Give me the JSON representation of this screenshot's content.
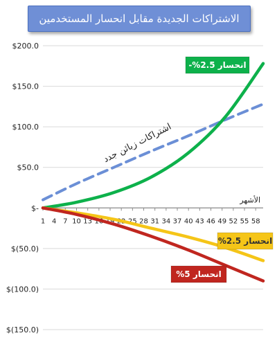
{
  "chart_data": {
    "type": "line",
    "title": "الاشتراكات الجديدة مقابل انحسار المستخدمين",
    "xlabel": "الأشهر",
    "ylabel": "",
    "ylim": [
      -150,
      200
    ],
    "yticks": [
      200,
      150,
      100,
      50,
      0,
      -50,
      -100,
      -150
    ],
    "ytick_labels": [
      "$200.0",
      "$150.0",
      "$100.0",
      "$50.0",
      "$-",
      "$(50.0)",
      "$(100.0)",
      "$(150.0)"
    ],
    "xlim": [
      1,
      60
    ],
    "x_ticks": [
      1,
      4,
      7,
      10,
      13,
      16,
      19,
      22,
      25,
      28,
      31,
      34,
      37,
      40,
      43,
      46,
      49,
      52,
      55,
      58
    ],
    "grid": "horizontal",
    "series": [
      {
        "name": "اشتراكات زبائن جدد",
        "color": "#6b8fd6",
        "dash": true,
        "x": [
          1,
          10,
          20,
          30,
          40,
          50,
          60
        ],
        "values": [
          10,
          30,
          50,
          70,
          89,
          109,
          128
        ]
      },
      {
        "name": "انحسار 2.5%-",
        "color": "#0db14b",
        "dash": false,
        "x": [
          1,
          10,
          20,
          30,
          40,
          50,
          60
        ],
        "values": [
          0,
          7,
          19,
          38,
          68,
          113,
          178
        ]
      },
      {
        "name": "انحسار 2.5%",
        "color": "#f5c518",
        "dash": false,
        "x": [
          1,
          10,
          20,
          30,
          40,
          50,
          60
        ],
        "values": [
          0,
          -6,
          -14,
          -25,
          -36,
          -49,
          -65
        ]
      },
      {
        "name": "انحسار 5%",
        "color": "#c0261f",
        "dash": false,
        "x": [
          1,
          10,
          20,
          30,
          40,
          50,
          60
        ],
        "values": [
          0,
          -8,
          -20,
          -35,
          -52,
          -71,
          -90
        ]
      }
    ],
    "annotations": [
      {
        "text": "انحسار 2.5%-",
        "bg": "#0db14b",
        "fg": "#ffffff",
        "series": 1
      },
      {
        "text": "انحسار 2.5%",
        "bg": "#f5c518",
        "fg": "#333333",
        "series": 2
      },
      {
        "text": "انحسار 5%",
        "bg": "#c0261f",
        "fg": "#ffffff",
        "series": 3
      },
      {
        "text": "اشتراكات زبائن جدد",
        "series": 0
      }
    ]
  }
}
